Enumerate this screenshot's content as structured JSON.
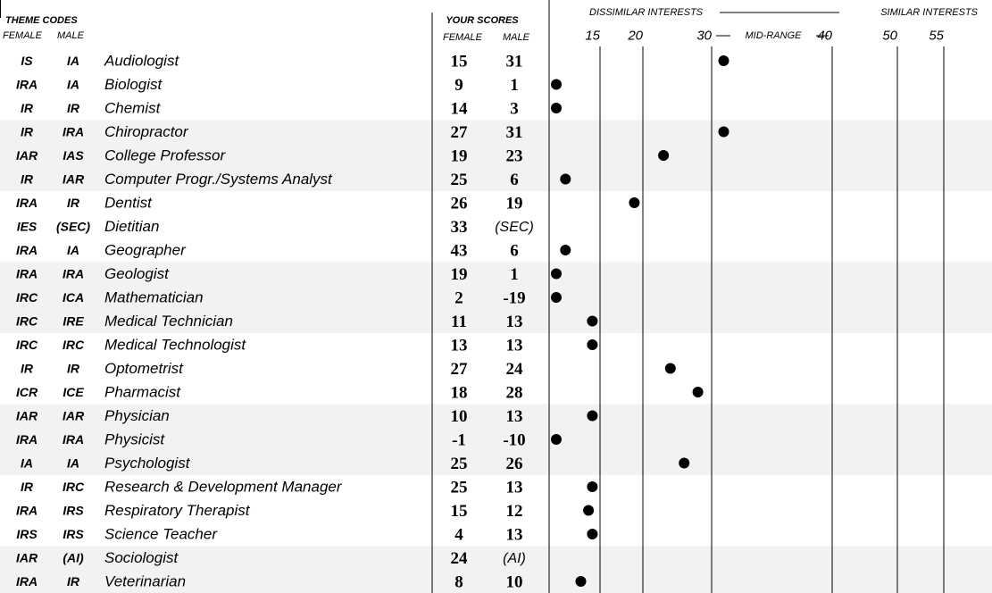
{
  "header": {
    "theme_codes": "THEME CODES",
    "theme_female": "FEMALE",
    "theme_male": "MALE",
    "your_scores": "YOUR SCORES",
    "score_female": "FEMALE",
    "score_male": "MALE",
    "dissimilar": "DISSIMILAR INTERESTS",
    "similar": "SIMILAR INTERESTS",
    "mid_range": "MID-RANGE"
  },
  "scale": {
    "ticks": [
      15,
      20,
      30,
      40,
      50,
      55
    ]
  },
  "rows": [
    {
      "female_code": "IS",
      "male_code": "IA",
      "occupation": "Audiologist",
      "female_score": 15,
      "male_score": 31
    },
    {
      "female_code": "IRA",
      "male_code": "IA",
      "occupation": "Biologist",
      "female_score": 9,
      "male_score": 1
    },
    {
      "female_code": "IR",
      "male_code": "IR",
      "occupation": "Chemist",
      "female_score": 14,
      "male_score": 3
    },
    {
      "female_code": "IR",
      "male_code": "IRA",
      "occupation": "Chiropractor",
      "female_score": 27,
      "male_score": 31
    },
    {
      "female_code": "IAR",
      "male_code": "IAS",
      "occupation": "College Professor",
      "female_score": 19,
      "male_score": 23
    },
    {
      "female_code": "IR",
      "male_code": "IAR",
      "occupation": "Computer Progr./Systems Analyst",
      "female_score": 25,
      "male_score": 6
    },
    {
      "female_code": "IRA",
      "male_code": "IR",
      "occupation": "Dentist",
      "female_score": 26,
      "male_score": 19
    },
    {
      "female_code": "IES",
      "male_code": "(SEC)",
      "occupation": "Dietitian",
      "female_score": 33,
      "male_score": "(SEC)"
    },
    {
      "female_code": "IRA",
      "male_code": "IA",
      "occupation": "Geographer",
      "female_score": 43,
      "male_score": 6
    },
    {
      "female_code": "IRA",
      "male_code": "IRA",
      "occupation": "Geologist",
      "female_score": 19,
      "male_score": 1
    },
    {
      "female_code": "IRC",
      "male_code": "ICA",
      "occupation": "Mathematician",
      "female_score": 2,
      "male_score": -19
    },
    {
      "female_code": "IRC",
      "male_code": "IRE",
      "occupation": "Medical Technician",
      "female_score": 11,
      "male_score": 13
    },
    {
      "female_code": "IRC",
      "male_code": "IRC",
      "occupation": "Medical Technologist",
      "female_score": 13,
      "male_score": 13
    },
    {
      "female_code": "IR",
      "male_code": "IR",
      "occupation": "Optometrist",
      "female_score": 27,
      "male_score": 24
    },
    {
      "female_code": "ICR",
      "male_code": "ICE",
      "occupation": "Pharmacist",
      "female_score": 18,
      "male_score": 28
    },
    {
      "female_code": "IAR",
      "male_code": "IAR",
      "occupation": "Physician",
      "female_score": 10,
      "male_score": 13
    },
    {
      "female_code": "IRA",
      "male_code": "IRA",
      "occupation": "Physicist",
      "female_score": -1,
      "male_score": -10
    },
    {
      "female_code": "IA",
      "male_code": "IA",
      "occupation": "Psychologist",
      "female_score": 25,
      "male_score": 26
    },
    {
      "female_code": "IR",
      "male_code": "IRC",
      "occupation": "Research & Development Manager",
      "female_score": 25,
      "male_score": 13
    },
    {
      "female_code": "IRA",
      "male_code": "IRS",
      "occupation": "Respiratory Therapist",
      "female_score": 15,
      "male_score": 12
    },
    {
      "female_code": "IRS",
      "male_code": "IRS",
      "occupation": "Science Teacher",
      "female_score": 4,
      "male_score": 13
    },
    {
      "female_code": "IAR",
      "male_code": "(AI)",
      "occupation": "Sociologist",
      "female_score": 24,
      "male_score": "(AI)"
    },
    {
      "female_code": "IRA",
      "male_code": "IR",
      "occupation": "Veterinarian",
      "female_score": 8,
      "male_score": 10
    }
  ]
}
